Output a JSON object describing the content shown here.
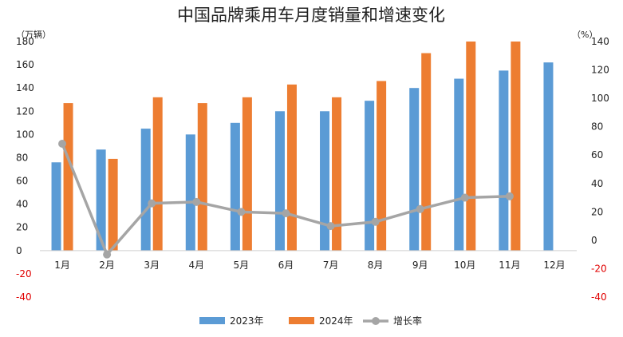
{
  "chart_data": {
    "type": "bar",
    "title": "中国品牌乘用车月度销量和增速变化",
    "ylabel": "（万辆）",
    "y2label": "（%）",
    "categories": [
      "1月",
      "2月",
      "3月",
      "4月",
      "5月",
      "6月",
      "7月",
      "8月",
      "9月",
      "10月",
      "11月",
      "12月"
    ],
    "ylim": [
      -40,
      180
    ],
    "y2lim": [
      -40,
      140
    ],
    "yticks": [
      "-40",
      "-20",
      "0",
      "20",
      "40",
      "60",
      "80",
      "100",
      "120",
      "140",
      "160",
      "180"
    ],
    "y2ticks": [
      "-40",
      "-20",
      "0",
      "20",
      "40",
      "60",
      "80",
      "100",
      "120",
      "140"
    ],
    "series": [
      {
        "name": "2023年",
        "kind": "bar",
        "axis": "left",
        "color": "#5b9bd5",
        "values": [
          76,
          87,
          105,
          100,
          110,
          120,
          120,
          129,
          140,
          148,
          155,
          162
        ]
      },
      {
        "name": "2024年",
        "kind": "bar",
        "axis": "left",
        "color": "#ed7d31",
        "values": [
          127,
          79,
          132,
          127,
          132,
          143,
          132,
          146,
          170,
          180,
          180,
          null
        ]
      },
      {
        "name": "增长率",
        "kind": "line",
        "axis": "right",
        "color": "#a5a5a5",
        "values": [
          68,
          -10,
          26,
          27,
          20,
          19,
          10,
          13,
          22,
          30,
          31,
          null
        ]
      }
    ],
    "negative_tick_color": "#e00000",
    "legend_position": "bottom",
    "grid": false
  }
}
